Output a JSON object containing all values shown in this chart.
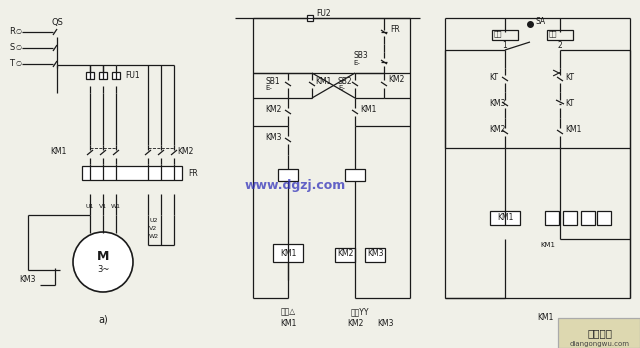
{
  "bg_color": "#f0f0e8",
  "line_color": "#1a1a1a",
  "text_color": "#1a1a1a",
  "watermark_color": "#3333bb",
  "watermark_text": "www.dgzj.com",
  "footer_text1": "电工之屋",
  "footer_text2": "diangongwu.com"
}
